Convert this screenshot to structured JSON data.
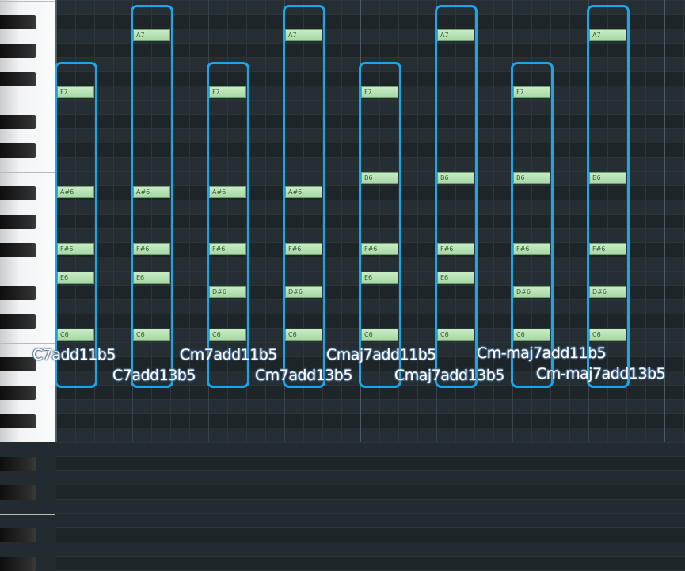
{
  "chords": [
    {
      "label": "C7add11b5",
      "notes": [
        "F7",
        "A#6",
        "F#6",
        "E6",
        "C6"
      ]
    },
    {
      "label": "C7add13b5",
      "notes": [
        "A7",
        "A#6",
        "F#6",
        "E6",
        "C6"
      ]
    },
    {
      "label": "Cm7add11b5",
      "notes": [
        "F7",
        "A#6",
        "F#6",
        "D#6",
        "C6"
      ]
    },
    {
      "label": "Cm7add13b5",
      "notes": [
        "A7",
        "A#6",
        "F#6",
        "D#6",
        "C6"
      ]
    },
    {
      "label": "Cmaj7add11b5",
      "notes": [
        "F7",
        "B6",
        "F#6",
        "E6",
        "C6"
      ]
    },
    {
      "label": "Cmaj7add13b5",
      "notes": [
        "A7",
        "B6",
        "F#6",
        "E6",
        "C6"
      ]
    },
    {
      "label": "Cm-maj7add11b5",
      "notes": [
        "F7",
        "B6",
        "F#6",
        "D#6",
        "C6"
      ]
    },
    {
      "label": "Cm-maj7add13b5",
      "notes": [
        "A7",
        "B6",
        "F#6",
        "D#6",
        "C6"
      ]
    }
  ],
  "colors": {
    "highlight_box": "#1aa6e8",
    "note_fill": "#b5e0b2",
    "grid_background": "#242e33"
  }
}
